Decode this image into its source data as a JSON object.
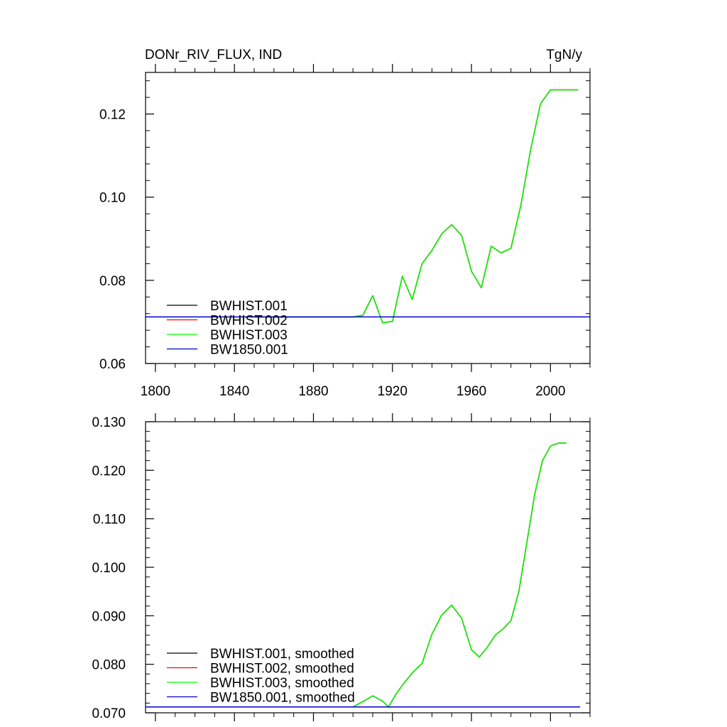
{
  "title_left": "DONr_RIV_FLUX, IND",
  "title_right": "TgN/y",
  "chart_data": [
    {
      "type": "line",
      "xlim": [
        1795,
        2020
      ],
      "ylim": [
        0.06,
        0.13
      ],
      "xticks": [
        1800,
        1840,
        1880,
        1920,
        1960,
        2000
      ],
      "xtick_labels": [
        "1800",
        "1840",
        "1880",
        "1920",
        "1960",
        "2000"
      ],
      "yticks": [
        0.06,
        0.08,
        0.1,
        0.12
      ],
      "ytick_labels": [
        "0.06",
        "0.08",
        "0.10",
        "0.12"
      ],
      "legend_position": "bottom-left",
      "series": [
        {
          "name": "BWHIST.001",
          "color": "#000000",
          "x": [
            1850,
            1900,
            1905,
            1910,
            1915,
            1920,
            1925,
            1930,
            1935,
            1940,
            1945,
            1950,
            1955,
            1960,
            1965,
            1970,
            1975,
            1980,
            1985,
            1990,
            1995,
            2000,
            2005,
            2010,
            2014
          ],
          "y": [
            0.0712,
            0.0712,
            0.0716,
            0.0763,
            0.0698,
            0.0701,
            0.081,
            0.0754,
            0.084,
            0.0872,
            0.0912,
            0.0934,
            0.0908,
            0.0822,
            0.0782,
            0.0882,
            0.0866,
            0.0877,
            0.098,
            0.1115,
            0.1225,
            0.1258,
            0.1258,
            0.1258,
            0.1258
          ]
        },
        {
          "name": "BWHIST.002",
          "color": "#ff0000",
          "x": [
            1850,
            1900,
            1905,
            1910,
            1915,
            1920,
            1925,
            1930,
            1935,
            1940,
            1945,
            1950,
            1955,
            1960,
            1965,
            1970,
            1975,
            1980,
            1985,
            1990,
            1995,
            2000,
            2005,
            2010,
            2014
          ],
          "y": [
            0.0712,
            0.0712,
            0.0716,
            0.0763,
            0.0698,
            0.0701,
            0.081,
            0.0754,
            0.084,
            0.0872,
            0.0912,
            0.0934,
            0.0908,
            0.0822,
            0.0782,
            0.0882,
            0.0866,
            0.0877,
            0.098,
            0.1115,
            0.1225,
            0.1258,
            0.1258,
            0.1258,
            0.1258
          ]
        },
        {
          "name": "BWHIST.003",
          "color": "#00ff00",
          "x": [
            1850,
            1900,
            1905,
            1910,
            1915,
            1920,
            1925,
            1930,
            1935,
            1940,
            1945,
            1950,
            1955,
            1960,
            1965,
            1970,
            1975,
            1980,
            1985,
            1990,
            1995,
            2000,
            2005,
            2010,
            2014
          ],
          "y": [
            0.0712,
            0.0712,
            0.0716,
            0.0763,
            0.0698,
            0.0701,
            0.081,
            0.0754,
            0.084,
            0.0872,
            0.0912,
            0.0934,
            0.0908,
            0.0822,
            0.0782,
            0.0882,
            0.0866,
            0.0877,
            0.098,
            0.1115,
            0.1225,
            0.1258,
            0.1258,
            0.1258,
            0.1258
          ]
        },
        {
          "name": "BW1850.001",
          "color": "#0000cc",
          "x": [
            1795,
            2020
          ],
          "y": [
            0.0712,
            0.0712
          ]
        }
      ]
    },
    {
      "type": "line",
      "xlim": [
        1795,
        2020
      ],
      "ylim": [
        0.07,
        0.13
      ],
      "xticks": [
        1800,
        1840,
        1880,
        1920,
        1960,
        2000
      ],
      "xtick_labels": [],
      "yticks": [
        0.07,
        0.08,
        0.09,
        0.1,
        0.11,
        0.12,
        0.13
      ],
      "ytick_labels": [
        "0.070",
        "0.080",
        "0.090",
        "0.100",
        "0.110",
        "0.120",
        "0.130"
      ],
      "legend_position": "bottom-left",
      "series": [
        {
          "name": "BWHIST.001, smoothed",
          "color": "#000000",
          "x": [
            1855,
            1900,
            1905,
            1910,
            1915,
            1918,
            1922,
            1926,
            1930,
            1935,
            1940,
            1945,
            1950,
            1955,
            1960,
            1964,
            1968,
            1972,
            1976,
            1980,
            1984,
            1988,
            1992,
            1996,
            2000,
            2004,
            2008
          ],
          "y": [
            0.0712,
            0.0712,
            0.0723,
            0.0735,
            0.0724,
            0.0712,
            0.074,
            0.0762,
            0.0782,
            0.0802,
            0.0862,
            0.0902,
            0.0922,
            0.0895,
            0.083,
            0.0815,
            0.0835,
            0.086,
            0.0873,
            0.089,
            0.095,
            0.105,
            0.115,
            0.122,
            0.125,
            0.1256,
            0.1256
          ]
        },
        {
          "name": "BWHIST.002, smoothed",
          "color": "#ff0000",
          "x": [
            1855,
            1900,
            1905,
            1910,
            1915,
            1918,
            1922,
            1926,
            1930,
            1935,
            1940,
            1945,
            1950,
            1955,
            1960,
            1964,
            1968,
            1972,
            1976,
            1980,
            1984,
            1988,
            1992,
            1996,
            2000,
            2004,
            2008
          ],
          "y": [
            0.0712,
            0.0712,
            0.0723,
            0.0735,
            0.0724,
            0.0712,
            0.074,
            0.0762,
            0.0782,
            0.0802,
            0.0862,
            0.0902,
            0.0922,
            0.0895,
            0.083,
            0.0815,
            0.0835,
            0.086,
            0.0873,
            0.089,
            0.095,
            0.105,
            0.115,
            0.122,
            0.125,
            0.1256,
            0.1256
          ]
        },
        {
          "name": "BWHIST.003, smoothed",
          "color": "#00ff00",
          "x": [
            1855,
            1900,
            1905,
            1910,
            1915,
            1918,
            1922,
            1926,
            1930,
            1935,
            1940,
            1945,
            1950,
            1955,
            1960,
            1964,
            1968,
            1972,
            1976,
            1980,
            1984,
            1988,
            1992,
            1996,
            2000,
            2004,
            2008
          ],
          "y": [
            0.0712,
            0.0712,
            0.0723,
            0.0735,
            0.0724,
            0.0712,
            0.074,
            0.0762,
            0.0782,
            0.0802,
            0.0862,
            0.0902,
            0.0922,
            0.0895,
            0.083,
            0.0815,
            0.0835,
            0.086,
            0.0873,
            0.089,
            0.095,
            0.105,
            0.115,
            0.122,
            0.125,
            0.1256,
            0.1256
          ]
        },
        {
          "name": "BW1850.001, smoothed",
          "color": "#0000cc",
          "x": [
            1795,
            2015
          ],
          "y": [
            0.0712,
            0.0712
          ]
        }
      ]
    }
  ]
}
